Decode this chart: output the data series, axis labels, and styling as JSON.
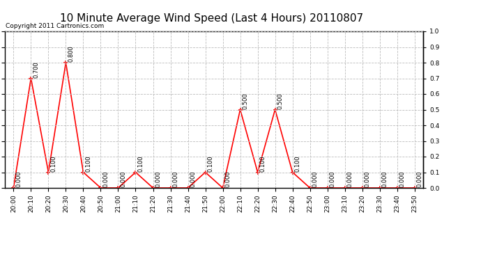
{
  "title": "10 Minute Average Wind Speed (Last 4 Hours) 20110807",
  "copyright": "Copyright 2011 Cartronics.com",
  "times": [
    "20:00",
    "20:10",
    "20:20",
    "20:30",
    "20:40",
    "20:50",
    "21:00",
    "21:10",
    "21:20",
    "21:30",
    "21:40",
    "21:50",
    "22:00",
    "22:10",
    "22:20",
    "22:30",
    "22:40",
    "22:50",
    "23:00",
    "23:10",
    "23:20",
    "23:30",
    "23:40",
    "23:50"
  ],
  "values": [
    0.0,
    0.7,
    0.1,
    0.8,
    0.1,
    0.0,
    0.0,
    0.1,
    0.0,
    0.0,
    0.0,
    0.1,
    0.0,
    0.5,
    0.1,
    0.5,
    0.1,
    0.0,
    0.0,
    0.0,
    0.0,
    0.0,
    0.0,
    0.0
  ],
  "line_color": "#ff0000",
  "marker_color": "#ff0000",
  "bg_color": "#ffffff",
  "grid_color": "#bbbbbb",
  "ylim": [
    0.0,
    1.0
  ],
  "yticks": [
    0.0,
    0.1,
    0.2,
    0.3,
    0.4,
    0.5,
    0.6,
    0.7,
    0.8,
    0.9,
    1.0
  ],
  "title_fontsize": 11,
  "copyright_fontsize": 6.5,
  "label_fontsize": 6,
  "tick_fontsize": 6.5
}
